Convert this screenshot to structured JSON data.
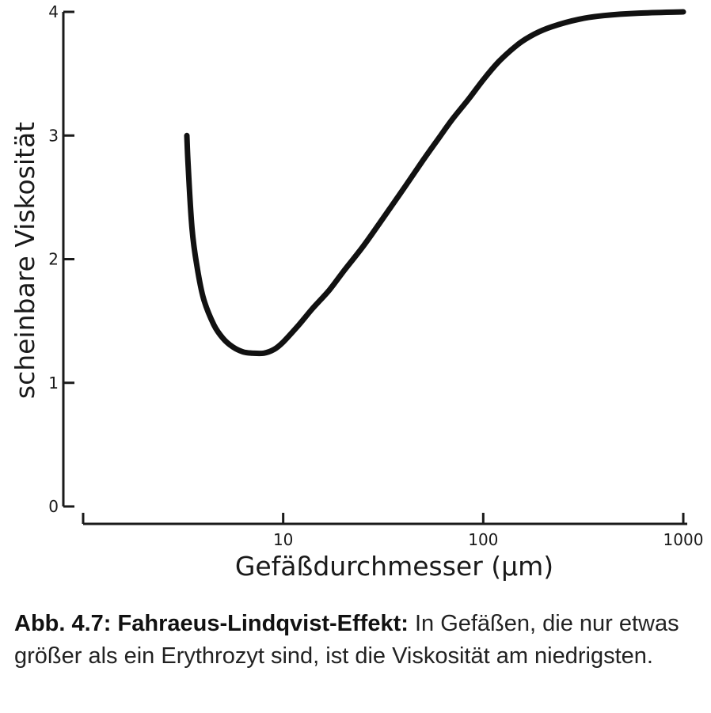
{
  "chart_data": {
    "type": "line",
    "xlabel": "Gefäßdurchmesser (µm)",
    "ylabel": "scheinbare Viskosität",
    "x_scale": "log",
    "xlim": [
      1,
      1000
    ],
    "ylim": [
      0,
      4
    ],
    "x_ticks": [
      10,
      100,
      1000
    ],
    "x_tick_labels": [
      "10",
      "100",
      "1000"
    ],
    "y_ticks": [
      0,
      1,
      2,
      3,
      4
    ],
    "y_tick_labels": [
      "0",
      "1",
      "2",
      "3",
      "4"
    ],
    "grid": false,
    "series": [
      {
        "x": [
          3.3,
          3.35,
          3.5,
          3.7,
          4.0,
          4.5,
          5.0,
          5.6,
          6.3,
          7.0,
          8.0,
          9.0,
          10.0,
          12.0,
          14.0,
          17.0,
          20.0,
          25.0,
          30.0,
          40.0,
          50.0,
          60.0,
          70.0,
          85.0,
          100.0,
          120.0,
          150.0,
          180.0,
          220.0,
          300.0,
          400.0,
          600.0,
          1000.0
        ],
        "y": [
          3.0,
          2.75,
          2.25,
          1.95,
          1.68,
          1.47,
          1.36,
          1.29,
          1.25,
          1.24,
          1.24,
          1.27,
          1.33,
          1.47,
          1.6,
          1.75,
          1.9,
          2.1,
          2.28,
          2.57,
          2.8,
          2.98,
          3.13,
          3.3,
          3.45,
          3.6,
          3.74,
          3.82,
          3.88,
          3.94,
          3.97,
          3.99,
          4.0
        ]
      }
    ]
  },
  "caption": {
    "bold": "Abb. 4.7: Fahraeus-Lindqvist-Effekt:",
    "text": " In Gefäßen, die nur etwas größer als ein Erythrozyt sind, ist die Viskosität am niedrigsten."
  }
}
